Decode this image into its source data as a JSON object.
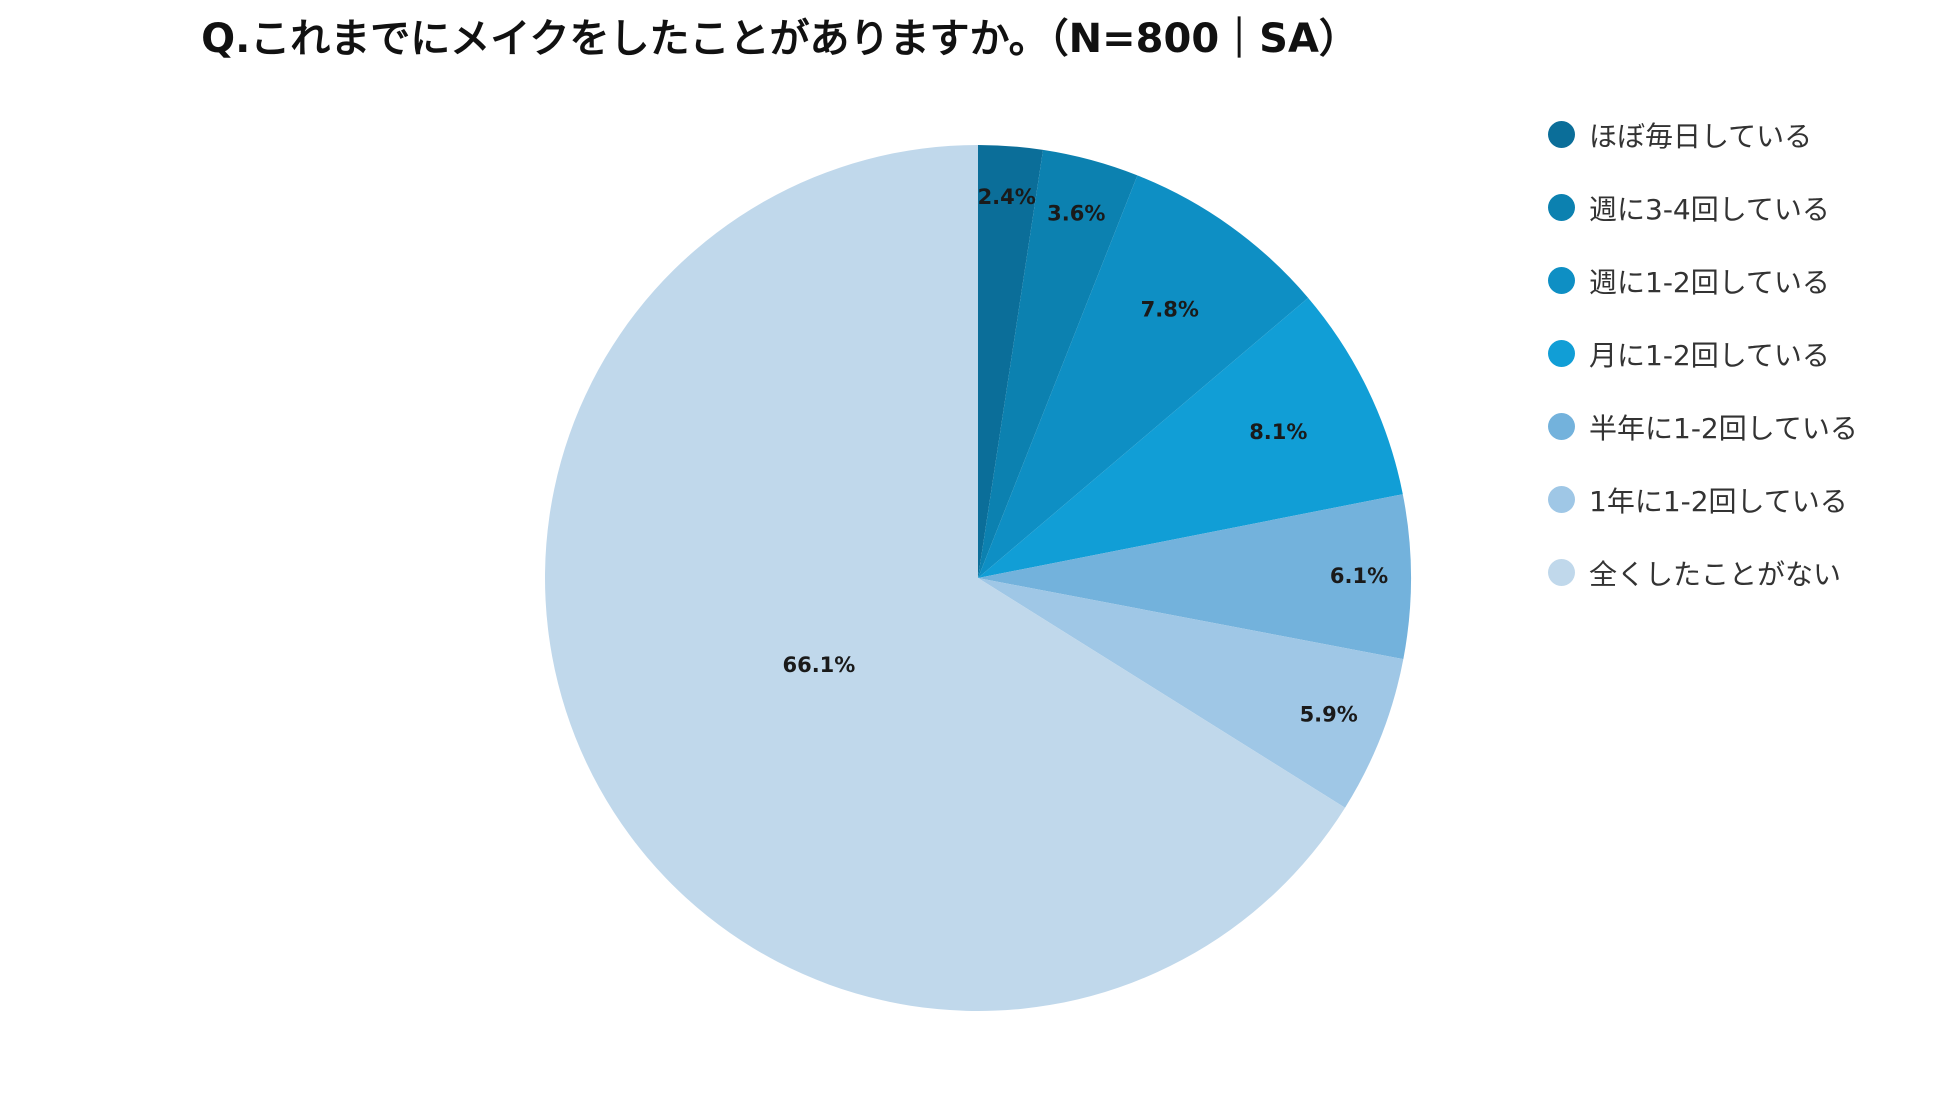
{
  "chart_data": {
    "type": "pie",
    "title": "Q.これまでにメイクをしたことがありますか。（N=800｜SA）",
    "categories": [
      "ほぼ毎日している",
      "週に3-4回している",
      "週に1-2回している",
      "月に1-2回している",
      "半年に1-2回している",
      "1年に1-2回している",
      "全くしたことがない"
    ],
    "values": [
      2.4,
      3.6,
      7.8,
      8.1,
      6.1,
      5.9,
      66.1
    ],
    "labels": [
      "2.4%",
      "3.6%",
      "7.8%",
      "8.1%",
      "6.1%",
      "5.9%",
      "66.1%"
    ],
    "colors": [
      "#0b6e99",
      "#0c81b0",
      "#0e8fc4",
      "#119ed6",
      "#73b2dc",
      "#9fc7e6",
      "#c0d8eb"
    ],
    "start": "12 o'clock",
    "direction": "clockwise",
    "legend_position": "right"
  }
}
